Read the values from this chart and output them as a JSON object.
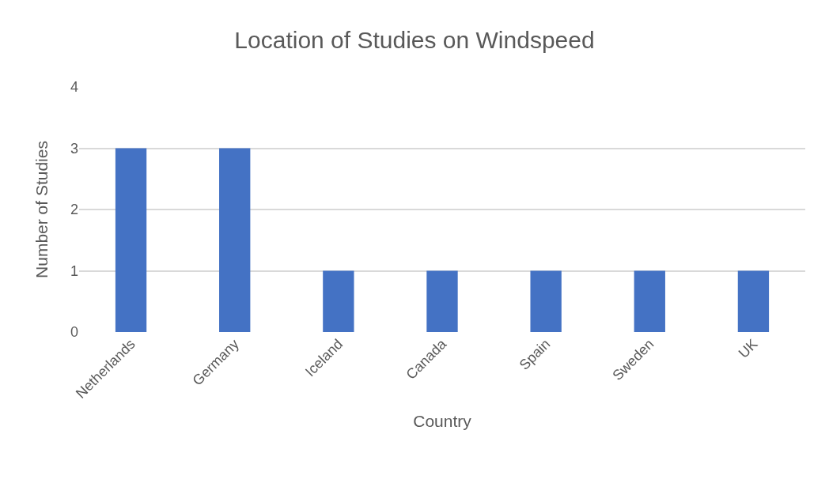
{
  "chart_data": {
    "type": "bar",
    "title": "Location of Studies on Windspeed",
    "xlabel": "Country",
    "ylabel": "Number of Studies",
    "categories": [
      "Netherlands",
      "Germany",
      "Iceland",
      "Canada",
      "Spain",
      "Sweden",
      "UK"
    ],
    "values": [
      3,
      3,
      1,
      1,
      1,
      1,
      1
    ],
    "color": "#4472c4",
    "ylim": [
      0,
      4
    ],
    "yticks": [
      0,
      1,
      2,
      3,
      4
    ],
    "grid": "y",
    "legend": false
  }
}
